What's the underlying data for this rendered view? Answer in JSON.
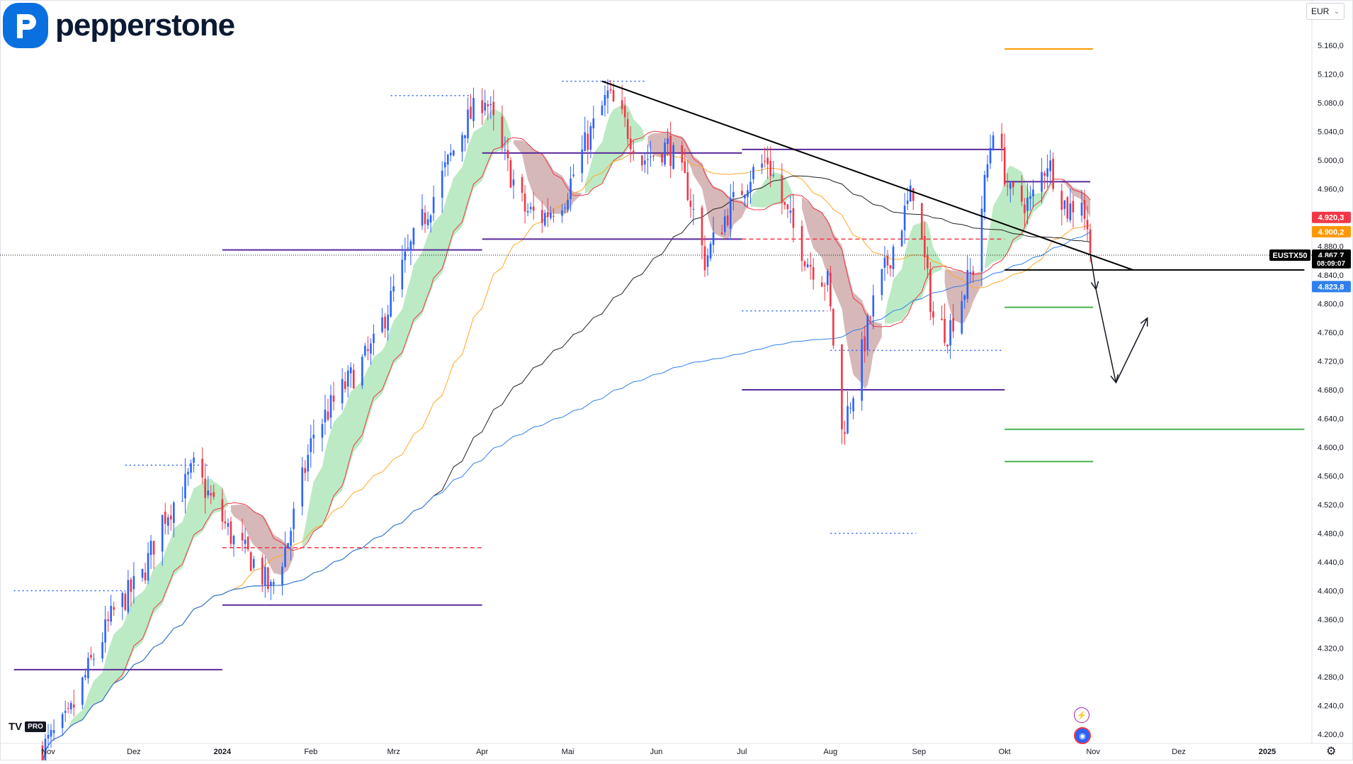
{
  "brand": {
    "name": "pepperstone"
  },
  "toolbar": {
    "currency": "EUR"
  },
  "tv_badge": {
    "logo": "TV",
    "pro": "PRO"
  },
  "icons": [
    "logo-p-icon",
    "lightning-icon",
    "globe-icon",
    "gear-icon",
    "chevron-down-icon"
  ],
  "colors": {
    "up": "#2962ff",
    "down": "#f23645",
    "cloud_up": "#a5e3b0",
    "cloud_down": "#c9a0a0",
    "ma_red": "#f23645",
    "ma_orange": "#ffa726",
    "ma_blue": "#2f80ed",
    "ma_black": "#222222",
    "level_purple": "#5b2a9c",
    "level_blue": "#2962ff",
    "level_red": "#f23645",
    "trendline": "#000000",
    "green": "#4caf50",
    "orange": "#ff9800",
    "price_tag": "#000000"
  },
  "chart_data": {
    "type": "candlestick",
    "symbol": "EUSTX50",
    "ylim": [
      4190,
      5200
    ],
    "y_ticks": [
      "5.160,0",
      "5.120,0",
      "5.080,0",
      "5.040,0",
      "5.000,0",
      "4.960,0",
      "4.880,0",
      "4.840,0",
      "4.800,0",
      "4.760,0",
      "4.720,0",
      "4.680,0",
      "4.640,0",
      "4.600,0",
      "4.560,0",
      "4.520,0",
      "4.480,0",
      "4.440,0",
      "4.400,0",
      "4.360,0",
      "4.320,0",
      "4.280,0",
      "4.240,0",
      "4.200,0"
    ],
    "x_ticks": [
      "Nov",
      "Dez",
      "2024",
      "Feb",
      "Mrz",
      "Apr",
      "Mai",
      "Jun",
      "Jul",
      "Aug",
      "Sep",
      "Okt",
      "Nov",
      "Dez",
      "2025"
    ],
    "price_labels": [
      {
        "label": "4.920,3",
        "value": 4920.3,
        "color": "#f23645"
      },
      {
        "label": "4.900,2",
        "value": 4900.2,
        "color": "#ff9800"
      },
      {
        "label": "4.867,7",
        "value": 4867.7,
        "color": "#000000"
      },
      {
        "label": "08:09:07",
        "value": 4857,
        "color": "#000000"
      },
      {
        "label": "4.823,8",
        "value": 4823.8,
        "color": "#2f80ed"
      }
    ],
    "last_price": 4867.7,
    "countdown": "08:09:07",
    "anchors": [
      {
        "date": "2023-10-30",
        "close": 4180
      },
      {
        "date": "2023-11-08",
        "close": 4220
      },
      {
        "date": "2023-11-16",
        "close": 4300
      },
      {
        "date": "2023-11-24",
        "close": 4370
      },
      {
        "date": "2023-12-04",
        "close": 4420
      },
      {
        "date": "2023-12-11",
        "close": 4500
      },
      {
        "date": "2023-12-18",
        "close": 4540
      },
      {
        "date": "2023-12-22",
        "close": 4570
      },
      {
        "date": "2023-12-29",
        "close": 4520
      },
      {
        "date": "2024-01-05",
        "close": 4470
      },
      {
        "date": "2024-01-12",
        "close": 4440
      },
      {
        "date": "2024-01-18",
        "close": 4400
      },
      {
        "date": "2024-01-24",
        "close": 4470
      },
      {
        "date": "2024-02-02",
        "close": 4620
      },
      {
        "date": "2024-02-12",
        "close": 4680
      },
      {
        "date": "2024-02-23",
        "close": 4740
      },
      {
        "date": "2024-03-05",
        "close": 4860
      },
      {
        "date": "2024-03-15",
        "close": 4950
      },
      {
        "date": "2024-03-26",
        "close": 5050
      },
      {
        "date": "2024-04-02",
        "close": 5090
      },
      {
        "date": "2024-04-08",
        "close": 5010
      },
      {
        "date": "2024-04-16",
        "close": 4930
      },
      {
        "date": "2024-04-22",
        "close": 4920
      },
      {
        "date": "2024-04-30",
        "close": 4950
      },
      {
        "date": "2024-05-08",
        "close": 5030
      },
      {
        "date": "2024-05-15",
        "close": 5090
      },
      {
        "date": "2024-05-21",
        "close": 5050
      },
      {
        "date": "2024-05-27",
        "close": 5000
      },
      {
        "date": "2024-06-05",
        "close": 5020
      },
      {
        "date": "2024-06-12",
        "close": 4960
      },
      {
        "date": "2024-06-18",
        "close": 4860
      },
      {
        "date": "2024-06-25",
        "close": 4920
      },
      {
        "date": "2024-07-04",
        "close": 4980
      },
      {
        "date": "2024-07-10",
        "close": 5000
      },
      {
        "date": "2024-07-16",
        "close": 4930
      },
      {
        "date": "2024-07-24",
        "close": 4860
      },
      {
        "date": "2024-07-31",
        "close": 4830
      },
      {
        "date": "2024-08-05",
        "close": 4620
      },
      {
        "date": "2024-08-09",
        "close": 4680
      },
      {
        "date": "2024-08-16",
        "close": 4800
      },
      {
        "date": "2024-08-23",
        "close": 4880
      },
      {
        "date": "2024-08-30",
        "close": 4960
      },
      {
        "date": "2024-09-06",
        "close": 4780
      },
      {
        "date": "2024-09-11",
        "close": 4760
      },
      {
        "date": "2024-09-20",
        "close": 4850
      },
      {
        "date": "2024-09-27",
        "close": 5050
      },
      {
        "date": "2024-10-03",
        "close": 4950
      },
      {
        "date": "2024-10-10",
        "close": 4940
      },
      {
        "date": "2024-10-16",
        "close": 5000
      },
      {
        "date": "2024-10-23",
        "close": 4930
      },
      {
        "date": "2024-10-28",
        "close": 4950
      },
      {
        "date": "2024-10-31",
        "close": 4870
      }
    ],
    "levels": [
      {
        "price": 4290,
        "from": "2023-10-20",
        "to": "2024-01-01",
        "color": "#5b2a9c",
        "style": "solid"
      },
      {
        "price": 4380,
        "from": "2024-01-01",
        "to": "2024-04-01",
        "color": "#5b2a9c",
        "style": "solid"
      },
      {
        "price": 4875,
        "from": "2024-01-01",
        "to": "2024-04-01",
        "color": "#5b2a9c",
        "style": "solid"
      },
      {
        "price": 4890,
        "from": "2024-04-01",
        "to": "2024-07-01",
        "color": "#5b2a9c",
        "style": "solid"
      },
      {
        "price": 5010,
        "from": "2024-04-01",
        "to": "2024-07-01",
        "color": "#5b2a9c",
        "style": "solid"
      },
      {
        "price": 5015,
        "from": "2024-07-01",
        "to": "2024-10-01",
        "color": "#5b2a9c",
        "style": "solid"
      },
      {
        "price": 4680,
        "from": "2024-07-01",
        "to": "2024-10-01",
        "color": "#5b2a9c",
        "style": "solid"
      },
      {
        "price": 4970,
        "from": "2024-10-01",
        "to": "2024-10-31",
        "color": "#5b2a9c",
        "style": "solid"
      },
      {
        "price": 4460,
        "from": "2024-01-01",
        "to": "2024-04-01",
        "color": "#f23645",
        "style": "dashed"
      },
      {
        "price": 4890,
        "from": "2024-07-01",
        "to": "2024-10-01",
        "color": "#f23645",
        "style": "dashed"
      },
      {
        "price": 4847,
        "from": "2024-10-01",
        "to": "2025-01-14",
        "color": "#000000",
        "style": "solid"
      },
      {
        "price": 5155,
        "from": "2024-10-01",
        "to": "2024-11-01",
        "color": "#ff9800",
        "style": "solid"
      },
      {
        "price": 4795,
        "from": "2024-10-01",
        "to": "2024-11-01",
        "color": "#4caf50",
        "style": "solid"
      },
      {
        "price": 4625,
        "from": "2024-10-01",
        "to": "2025-01-14",
        "color": "#4caf50",
        "style": "solid"
      },
      {
        "price": 4580,
        "from": "2024-10-01",
        "to": "2024-11-01",
        "color": "#4caf50",
        "style": "solid"
      },
      {
        "price": 4400,
        "from": "2023-10-20",
        "to": "2023-11-28",
        "color": "#2962ff",
        "style": "dotted"
      },
      {
        "price": 4575,
        "from": "2023-11-28",
        "to": "2023-12-27",
        "color": "#2962ff",
        "style": "dotted"
      },
      {
        "price": 5090,
        "from": "2024-02-29",
        "to": "2024-03-28",
        "color": "#2962ff",
        "style": "dotted"
      },
      {
        "price": 5110,
        "from": "2024-04-29",
        "to": "2024-05-28",
        "color": "#2962ff",
        "style": "dotted"
      },
      {
        "price": 4790,
        "from": "2024-07-01",
        "to": "2024-07-31",
        "color": "#2962ff",
        "style": "dotted"
      },
      {
        "price": 4735,
        "from": "2024-08-01",
        "to": "2024-08-31",
        "color": "#2962ff",
        "style": "dotted"
      },
      {
        "price": 4480,
        "from": "2024-08-01",
        "to": "2024-08-31",
        "color": "#2962ff",
        "style": "dotted"
      },
      {
        "price": 4735,
        "from": "2024-09-01",
        "to": "2024-09-30",
        "color": "#2962ff",
        "style": "dotted"
      }
    ],
    "trendline": {
      "from": {
        "date": "2024-05-13",
        "price": 5110
      },
      "to": {
        "date": "2024-11-15",
        "price": 4847
      }
    },
    "projection": [
      {
        "date": "2024-10-31",
        "price": 4870
      },
      {
        "date": "2024-11-02",
        "price": 4820
      },
      {
        "date": "2024-11-09",
        "price": 4690
      },
      {
        "date": "2024-11-20",
        "price": 4780
      }
    ],
    "moving_averages": [
      {
        "name": "MA red",
        "color": "#f23645"
      },
      {
        "name": "MA orange",
        "color": "#ffa726"
      },
      {
        "name": "MA black",
        "color": "#222222"
      },
      {
        "name": "MA blue",
        "color": "#2f80ed"
      }
    ]
  }
}
